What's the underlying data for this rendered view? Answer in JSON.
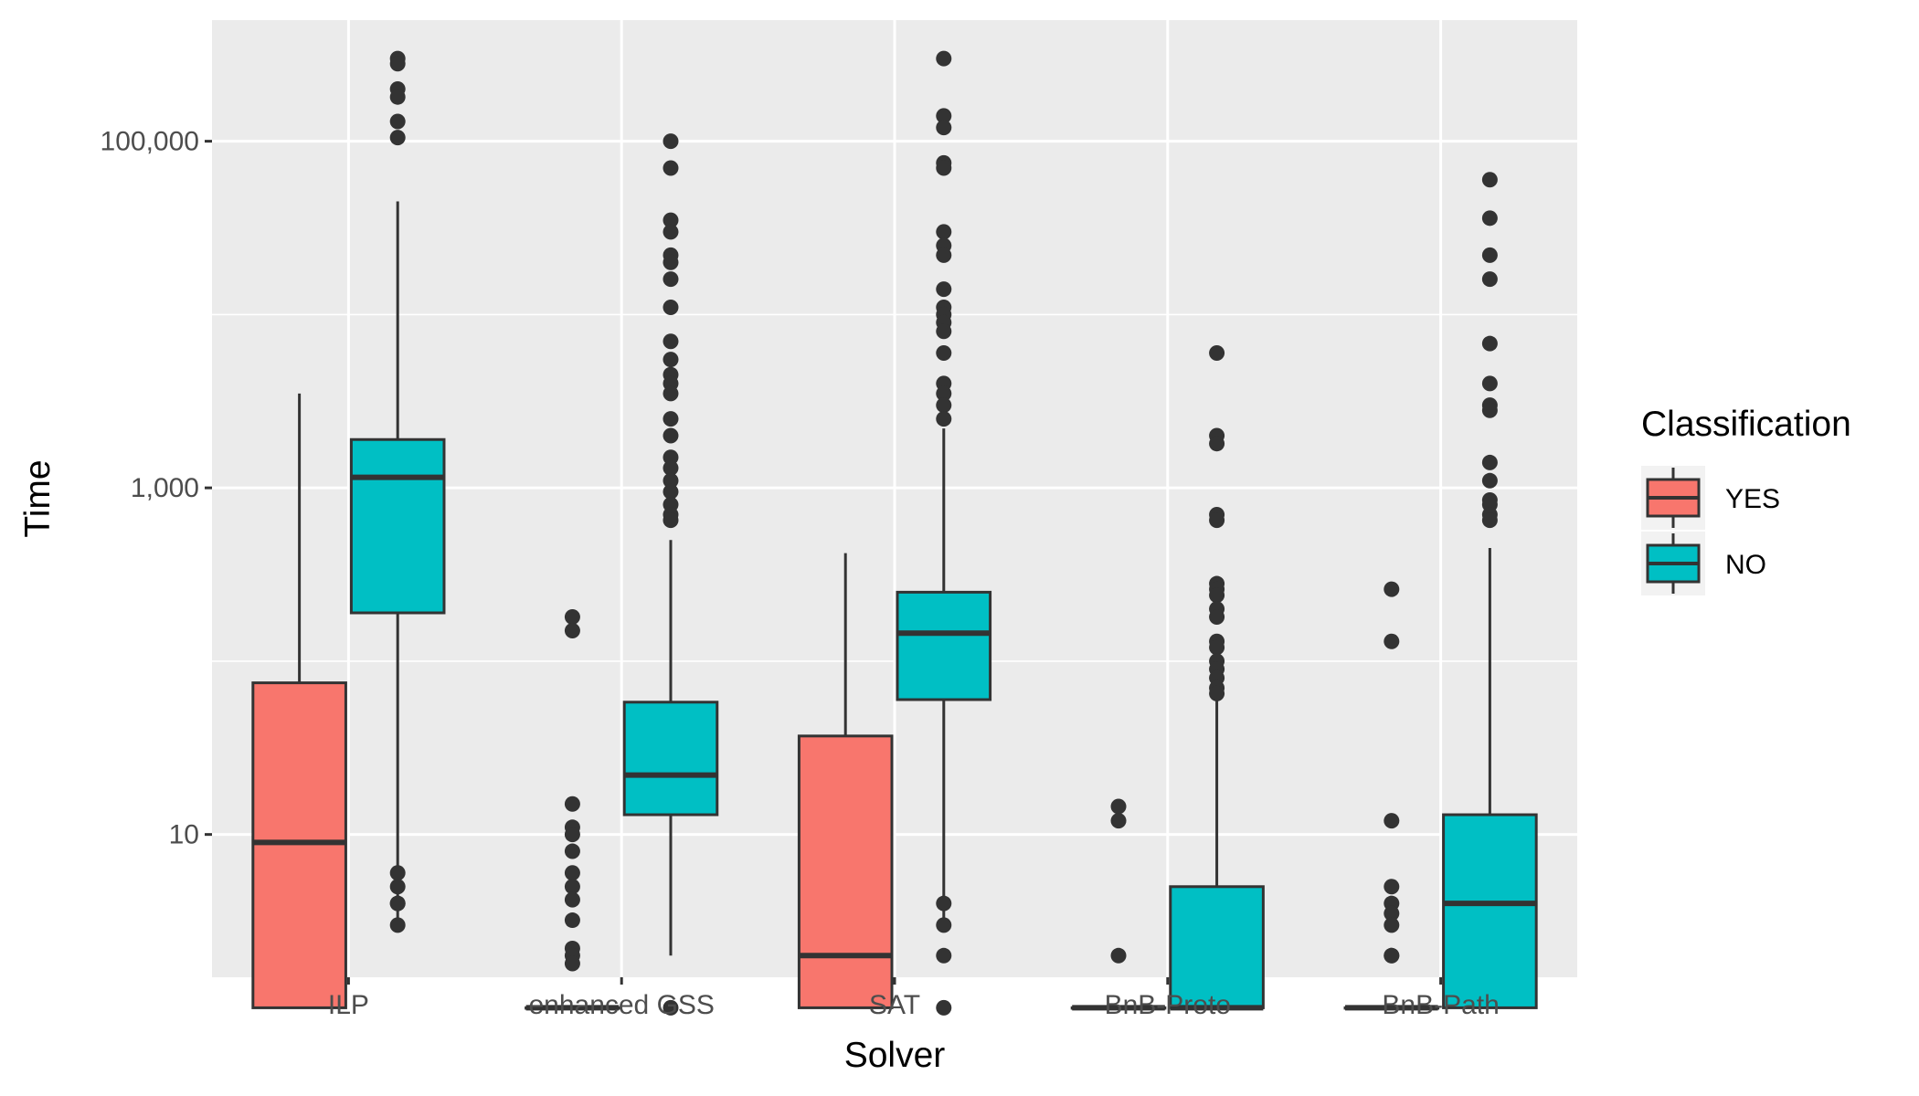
{
  "chart_data": {
    "type": "boxplot",
    "title": "",
    "xlabel": "Solver",
    "ylabel": "Time",
    "y_scale": "log10",
    "ylim": [
      1.5,
      500000
    ],
    "y_ticks": [
      10,
      1000,
      100000
    ],
    "y_tick_labels": [
      "10",
      "1,000",
      "100,000"
    ],
    "categories": [
      "ILP",
      "enhanced GSS",
      "SAT",
      "BnB-Proto",
      "BnB-Path"
    ],
    "grid": true,
    "legend": {
      "title": "Classification",
      "position": "right",
      "entries": [
        {
          "label": "YES",
          "color": "#F8766D"
        },
        {
          "label": "NO",
          "color": "#00BFC4"
        }
      ]
    },
    "series": [
      {
        "name": "YES",
        "color": "#F8766D",
        "boxes": [
          {
            "category": "ILP",
            "whisker_low": 1,
            "q1": 1,
            "median": 9,
            "q3": 75,
            "whisker_high": 3500,
            "outliers": []
          },
          {
            "category": "enhanced GSS",
            "whisker_low": 1,
            "q1": 1,
            "median": 1,
            "q3": 1,
            "whisker_high": 1,
            "outliers": [
              180,
              150,
              15,
              11,
              10,
              8,
              6,
              5,
              4.2,
              3.2,
              2.2,
              2,
              1.8
            ]
          },
          {
            "category": "SAT",
            "whisker_low": 1,
            "q1": 1,
            "median": 2,
            "q3": 37,
            "whisker_high": 420,
            "outliers": []
          },
          {
            "category": "BnB-Proto",
            "whisker_low": 1,
            "q1": 1,
            "median": 1,
            "q3": 1,
            "whisker_high": 1,
            "outliers": [
              14.5,
              12,
              2
            ]
          },
          {
            "category": "BnB-Path",
            "whisker_low": 1,
            "q1": 1,
            "median": 1,
            "q3": 1,
            "whisker_high": 1,
            "outliers": [
              260,
              130,
              12,
              5,
              4,
              3.5,
              3,
              2,
              2
            ]
          }
        ]
      },
      {
        "name": "NO",
        "color": "#00BFC4",
        "boxes": [
          {
            "category": "ILP",
            "whisker_low": 3,
            "q1": 190,
            "median": 1150,
            "q3": 1900,
            "whisker_high": 45000,
            "outliers": [
              300000,
              280000,
              200000,
              180000,
              130000,
              105000,
              6,
              5,
              4,
              4,
              3
            ]
          },
          {
            "category": "enhanced GSS",
            "whisker_low": 2,
            "q1": 13,
            "median": 22,
            "q3": 58,
            "whisker_high": 500,
            "outliers": [
              1,
              100000,
              70000,
              35000,
              30000,
              22000,
              20000,
              16000,
              11000,
              7000,
              5500,
              4500,
              4000,
              3500,
              2500,
              2000,
              1500,
              1300,
              1100,
              950,
              800,
              700,
              650
            ]
          },
          {
            "category": "SAT",
            "whisker_low": 3,
            "q1": 60,
            "median": 145,
            "q3": 250,
            "whisker_high": 2200,
            "outliers": [
              1,
              2,
              3,
              4,
              300000,
              140000,
              120000,
              75000,
              70000,
              30000,
              25000,
              22000,
              14000,
              11000,
              10000,
              9000,
              8000,
              6000,
              4000,
              3500,
              3000,
              2500
            ]
          },
          {
            "category": "BnB-Proto",
            "whisker_low": 1,
            "q1": 1,
            "median": 1,
            "q3": 5,
            "whisker_high": 60,
            "outliers": [
              6000,
              2000,
              1800,
              700,
              650,
              280,
              260,
              240,
              200,
              180,
              130,
              120,
              100,
              90,
              80,
              70,
              65
            ]
          },
          {
            "category": "BnB-Path",
            "whisker_low": 1,
            "q1": 1,
            "median": 4,
            "q3": 13,
            "whisker_high": 450,
            "outliers": [
              60000,
              36000,
              22000,
              16000,
              6800,
              4000,
              3000,
              2800,
              1400,
              1100,
              850,
              800,
              700,
              650
            ]
          }
        ]
      }
    ]
  }
}
